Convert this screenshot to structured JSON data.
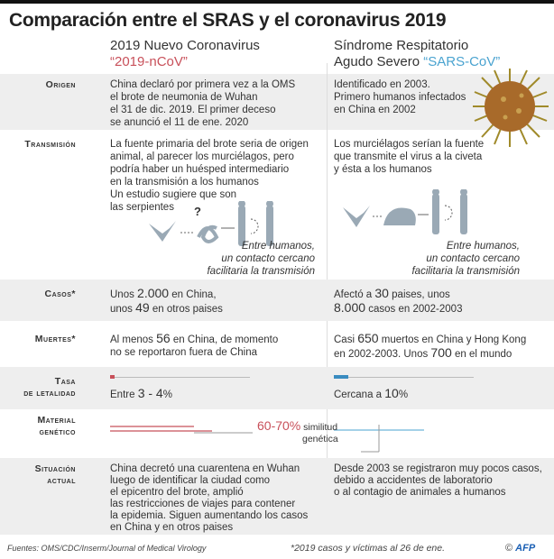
{
  "title": "Comparación entre el SRAS y el coronavirus 2019",
  "columns": [
    {
      "line1": "2019 Nuevo Coronavirus",
      "name": "“2019-nCoV”"
    },
    {
      "line1": "Síndrome Respitatorio",
      "line2": "Agudo Severo",
      "name": "“SARS-CoV”"
    }
  ],
  "rows": {
    "origen": {
      "label": "Origen",
      "c1": [
        "China declaró por primera vez a la OMS",
        "el brote de neumonia de Wuhan",
        "el 31 de dic. 2019. El primer deceso",
        "se anunció el 11 de ene. 2020"
      ],
      "c2": [
        "Identificado en 2003.",
        "Primero humanos infectados",
        "en China en 2002"
      ]
    },
    "transmision": {
      "label": "Transmisión",
      "c1": [
        "La fuente primaria del brote seria de origen",
        "animal, al parecer los murciélagos, pero",
        "podría haber un huésped intermediario",
        "en la transmisión a los humanos",
        "Un estudio sugiere que son",
        "las serpientes"
      ],
      "c2": [
        "Los murciélagos serían la fuente",
        "que transmite el virus a la civeta",
        "y ésta a los humanos"
      ],
      "question": "?",
      "note": [
        "Entre humanos,",
        "un contacto cercano",
        "facilitaria la transmisión"
      ]
    },
    "casos": {
      "label": "Casos*",
      "c1": {
        "a": "Unos ",
        "n1": "2.000",
        "b": " en China,",
        "c": "unos ",
        "n2": "49",
        "d": " en otros paises"
      },
      "c2": {
        "a": "Afectó a ",
        "n1": "30",
        "b": " paises, unos",
        "n2": "8.000",
        "d": " casos en 2002-2003"
      }
    },
    "muertes": {
      "label": "Muertes*",
      "c1": {
        "a": "Al menos ",
        "n1": "56",
        "b": " en China, de momento",
        "c": "no se reportaron fuera de China"
      },
      "c2": {
        "a": "Casi ",
        "n1": "650",
        "b": " muertos en China y Hong Kong",
        "c": "en 2002-2003. Unos ",
        "n2": "700",
        "d": " en el mundo"
      }
    },
    "tasa": {
      "label1": "Tasa",
      "label2": "de letalidad",
      "c1": {
        "a": "Entre ",
        "n": "3 - 4",
        "u": "%"
      },
      "c2": {
        "a": "Cercana a ",
        "n": "10",
        "u": "%"
      },
      "values_percent": [
        3.5,
        10
      ]
    },
    "material": {
      "label1": "Material",
      "label2": "genético",
      "pct": "60-70%",
      "t1": " similitud",
      "t2": "genética"
    },
    "situacion": {
      "label1": "Situación",
      "label2": "actual",
      "c1": [
        "China decretó una cuarentena en Wuhan",
        "luego de identificar la ciudad como",
        "el epicentro del brote, amplió",
        "las restricciones de viajes para contener",
        "la epidemia. Siguen aumentando los casos",
        "en China y en otros paises"
      ],
      "c2": [
        "Desde 2003 se registraron muy pocos casos,",
        "debido a accidentes de laboratorio",
        "o al contagio de animales a humanos"
      ]
    }
  },
  "footer": {
    "sources": "Fuentes: OMS/CDC/Inserm/Journal of Medical Virology",
    "note": "*2019 casos y víctimas al 26 de ene.",
    "copyright": "©",
    "logo": "AFP"
  },
  "colors": {
    "ncov": "#c8505a",
    "sars": "#4aa3d0",
    "virus": "#a86a2a"
  }
}
